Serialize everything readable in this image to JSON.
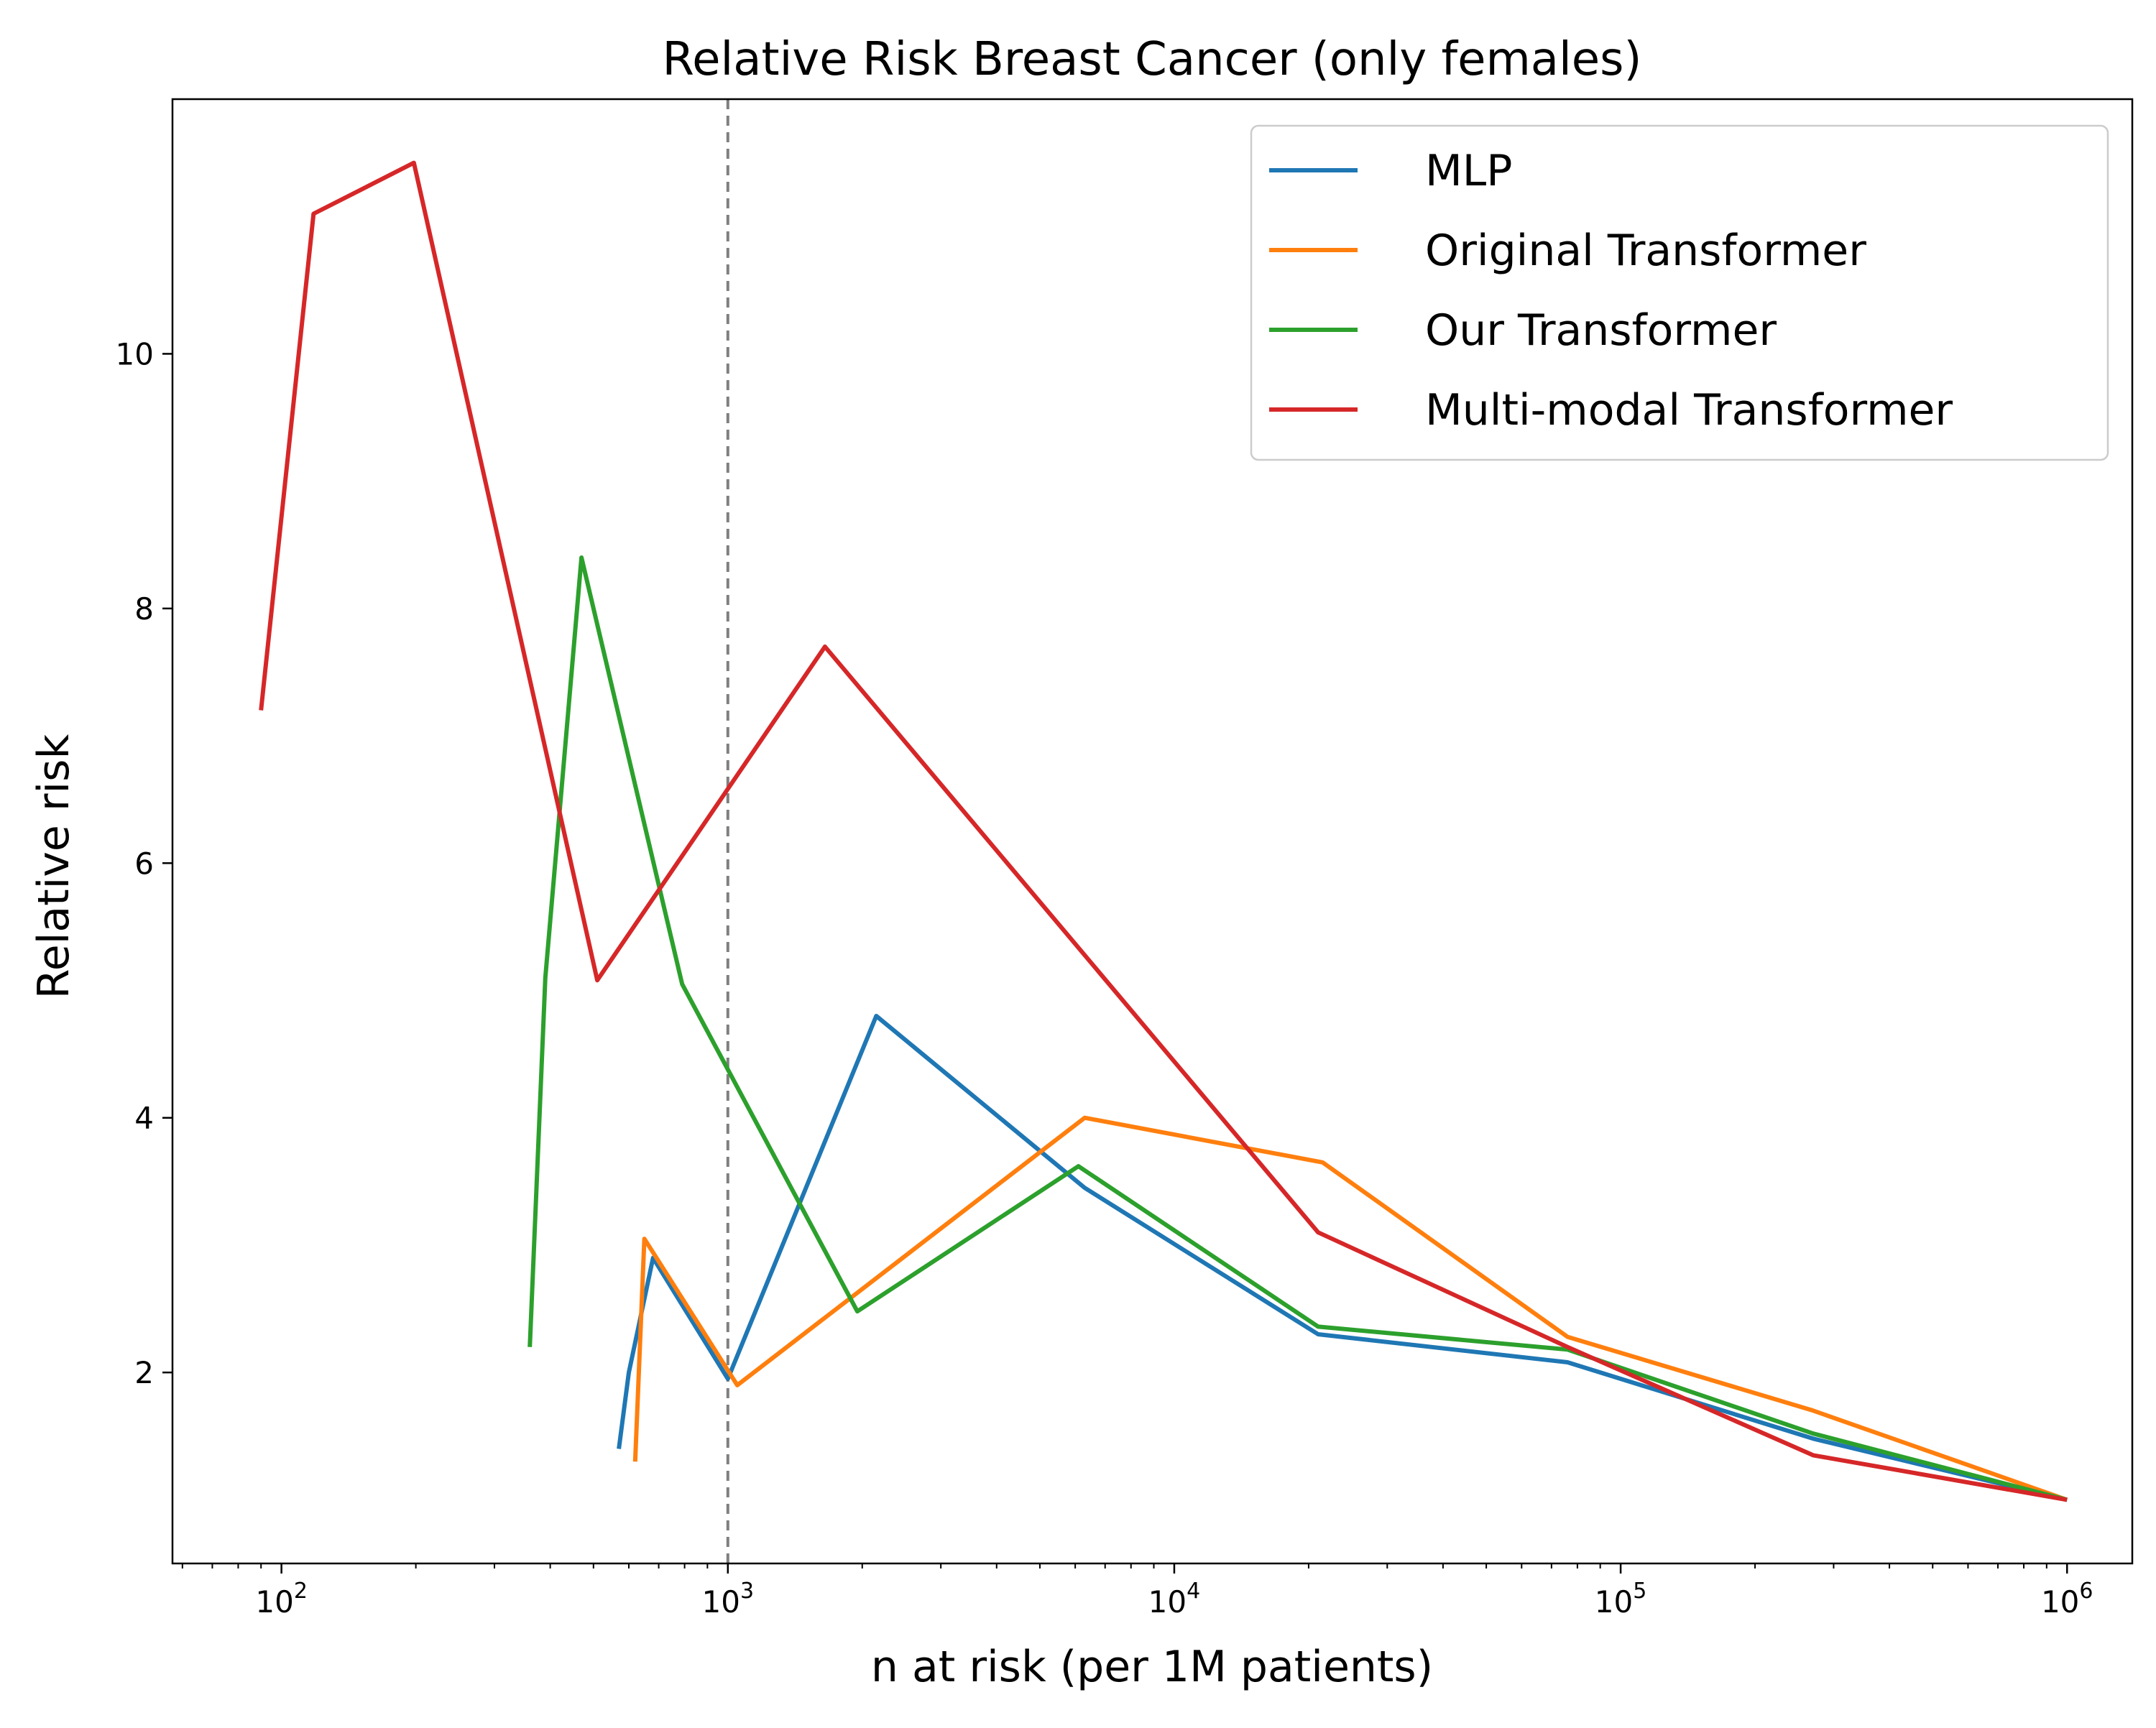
{
  "chart_data": {
    "type": "line",
    "title": "Relative Risk Breast Cancer (only females)",
    "xlabel": "n at risk (per 1M patients)",
    "ylabel": "Relative risk",
    "xscale": "log",
    "xlim": [
      57,
      1400000
    ],
    "ylim": [
      0.5,
      12.0
    ],
    "x_ticks": [
      {
        "value": 100,
        "base": "10",
        "exp": "2"
      },
      {
        "value": 1000,
        "base": "10",
        "exp": "3"
      },
      {
        "value": 10000,
        "base": "10",
        "exp": "4"
      },
      {
        "value": 100000,
        "base": "10",
        "exp": "5"
      },
      {
        "value": 1000000,
        "base": "10",
        "exp": "6"
      }
    ],
    "y_ticks": [
      2,
      4,
      6,
      8,
      10
    ],
    "reference_line": {
      "x": 1000,
      "style": "dashed",
      "color": "#7f7f7f"
    },
    "legend_position": "top-right",
    "series": [
      {
        "name": "MLP",
        "color": "#1f77b4",
        "x": [
          570,
          600,
          680,
          1000,
          2150,
          6300,
          21000,
          76000,
          270000,
          1000000
        ],
        "y": [
          1.4,
          2.0,
          2.9,
          1.95,
          4.8,
          3.45,
          2.3,
          2.08,
          1.48,
          1.0
        ]
      },
      {
        "name": "Original Transformer",
        "color": "#ff7f0e",
        "x": [
          620,
          650,
          1050,
          6300,
          21500,
          76000,
          270000,
          1000000
        ],
        "y": [
          1.3,
          3.05,
          1.9,
          4.0,
          3.65,
          2.28,
          1.7,
          1.0
        ]
      },
      {
        "name": "Our Transformer",
        "color": "#2ca02c",
        "x": [
          360,
          390,
          470,
          790,
          1950,
          6100,
          21000,
          76000,
          270000,
          1000000
        ],
        "y": [
          2.2,
          5.1,
          8.4,
          5.05,
          2.48,
          3.62,
          2.36,
          2.18,
          1.52,
          1.0
        ]
      },
      {
        "name": "Multi-modal Transformer",
        "color": "#d62728",
        "x": [
          90,
          118,
          198,
          510,
          1650,
          21000,
          76000,
          270000,
          1000000
        ],
        "y": [
          7.2,
          11.1,
          11.5,
          5.08,
          7.7,
          3.1,
          2.2,
          1.35,
          1.0
        ]
      }
    ]
  }
}
